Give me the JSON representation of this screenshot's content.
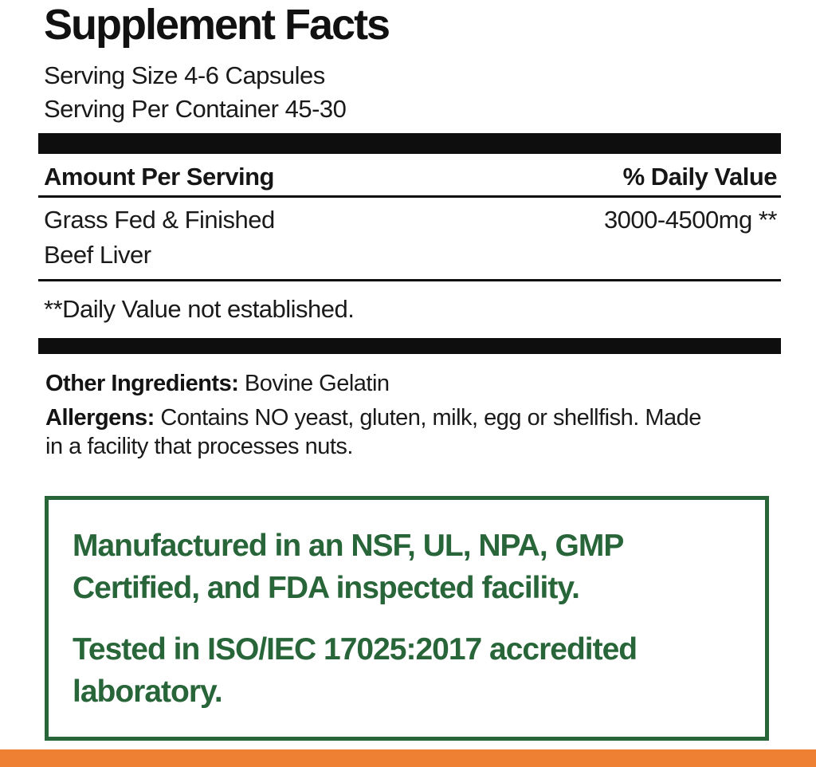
{
  "label": {
    "title": "Supplement Facts",
    "serving_size": "Serving Size 4-6 Capsules",
    "servings_per_container": "Serving Per Container 45-30",
    "table": {
      "amount_header": "Amount Per Serving",
      "dv_header": "% Daily Value",
      "rows": [
        {
          "name": "Grass Fed & Finished Beef Liver",
          "name_lines": [
            "Grass Fed & Finished",
            "Beef Liver"
          ],
          "amount": "3000-4500mg **"
        }
      ],
      "footnote": "**Daily Value not established."
    },
    "other_ingredients": {
      "label": "Other Ingredients:",
      "value": "Bovine Gelatin"
    },
    "allergens": {
      "label": "Allergens:",
      "text": "Contains NO yeast, gluten, milk, egg or shellfish. Made in a facility that processes nuts.",
      "lines": [
        "Contains NO yeast, gluten, milk, egg or shellfish. Made",
        "in a facility that processes nuts."
      ]
    },
    "certifications": {
      "paragraph1": "Manufactured in an NSF, UL, NPA, GMP Certified, and FDA inspected facility.",
      "p1_lines": [
        "Manufactured in an NSF, UL, NPA, GMP",
        "Certified, and FDA inspected facility."
      ],
      "paragraph2": "Tested in ISO/IEC 17025:2017 accredited laboratory.",
      "p2_lines": [
        "Tested in ISO/IEC 17025:2017 accredited",
        "laboratory."
      ]
    },
    "colors": {
      "text_black": "#111111",
      "cert_green": "#28663a",
      "accent_orange": "#ee8033",
      "background": "#ffffff"
    }
  }
}
